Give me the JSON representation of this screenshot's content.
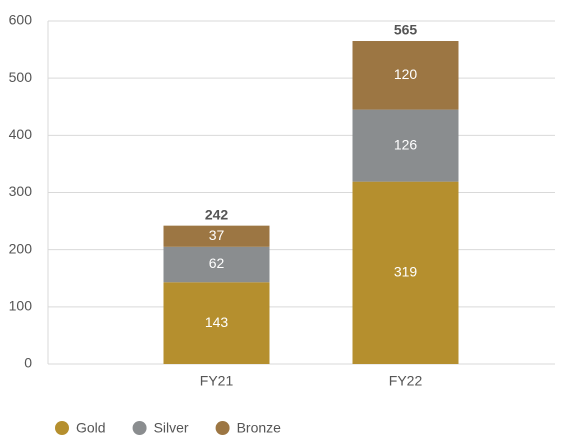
{
  "chart_data": {
    "type": "stacked_bar",
    "categories": [
      "FY21",
      "FY22"
    ],
    "series": [
      {
        "name": "Gold",
        "color": "#b58f2e",
        "values": [
          143,
          319
        ]
      },
      {
        "name": "Silver",
        "color": "#8a8d8f",
        "values": [
          62,
          126
        ]
      },
      {
        "name": "Bronze",
        "color": "#9c7643",
        "values": [
          37,
          120
        ]
      }
    ],
    "totals": [
      242,
      565
    ],
    "ylim": [
      0,
      600
    ],
    "yticks": [
      0,
      100,
      200,
      300,
      400,
      500,
      600
    ],
    "grid": true,
    "legend": "bottom-left"
  }
}
